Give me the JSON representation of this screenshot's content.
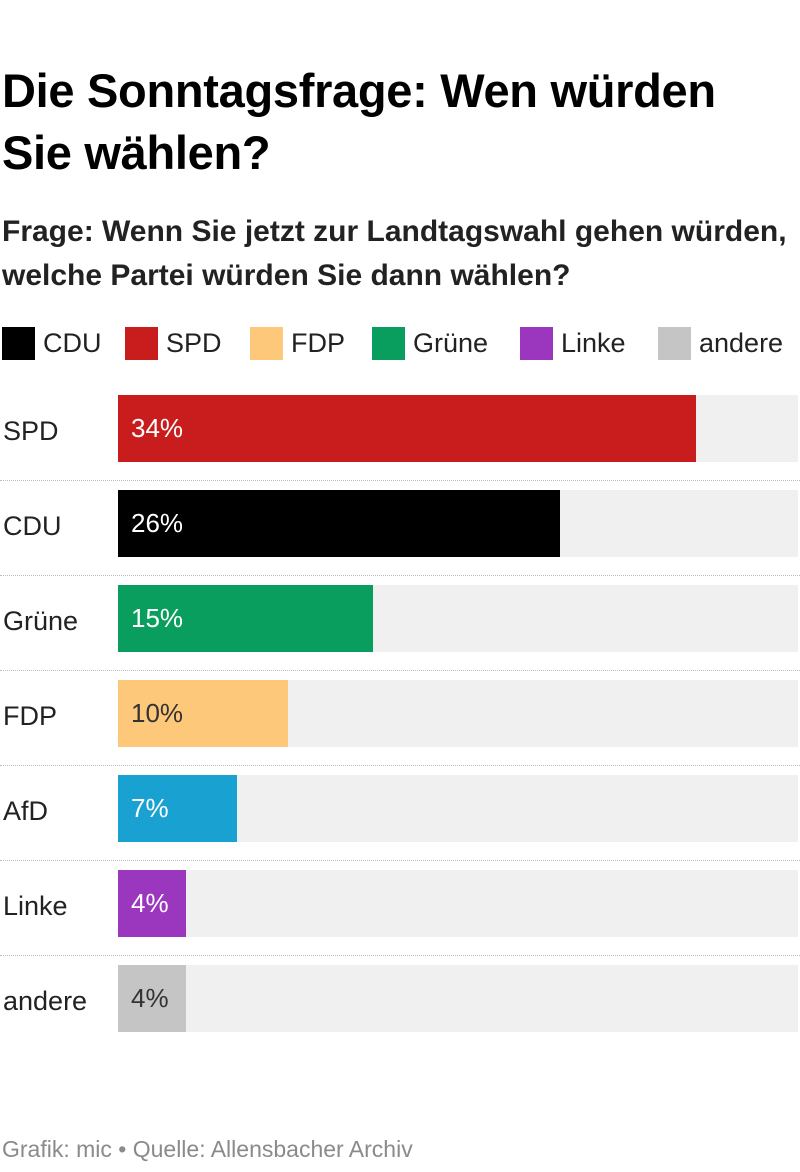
{
  "chart_data": {
    "type": "bar",
    "orientation": "horizontal",
    "title": "Die Sonntagsfrage: Wen würden Sie wählen?",
    "subtitle": "Frage: Wenn Sie jetzt zur Landtagswahl gehen würden, welche Partei würden Sie dann wählen?",
    "categories": [
      "SPD",
      "CDU",
      "Grüne",
      "FDP",
      "AfD",
      "Linke",
      "andere"
    ],
    "values": [
      34,
      26,
      15,
      10,
      7,
      4,
      4
    ],
    "value_labels": [
      "34%",
      "26%",
      "15%",
      "10%",
      "7%",
      "4%",
      "4%"
    ],
    "bar_colors": [
      "#c91d1d",
      "#000000",
      "#0a9e5e",
      "#fdc879",
      "#19a2d1",
      "#9b36bf",
      "#c5c5c5"
    ],
    "label_colors": [
      "#ffffff",
      "#ffffff",
      "#ffffff",
      "#333333",
      "#ffffff",
      "#ffffff",
      "#333333"
    ],
    "track_color": "#f0f0f0",
    "xlim": [
      0,
      40
    ],
    "legend": [
      {
        "label": "CDU",
        "color": "#000000"
      },
      {
        "label": "SPD",
        "color": "#c91d1d"
      },
      {
        "label": "FDP",
        "color": "#fdc879"
      },
      {
        "label": "Grüne",
        "color": "#0a9e5e"
      },
      {
        "label": "Linke",
        "color": "#9b36bf"
      },
      {
        "label": "andere",
        "color": "#c5c5c5"
      }
    ],
    "legend_position": "top",
    "footer": "Grafik: mic • Quelle: Allensbacher Archiv"
  }
}
